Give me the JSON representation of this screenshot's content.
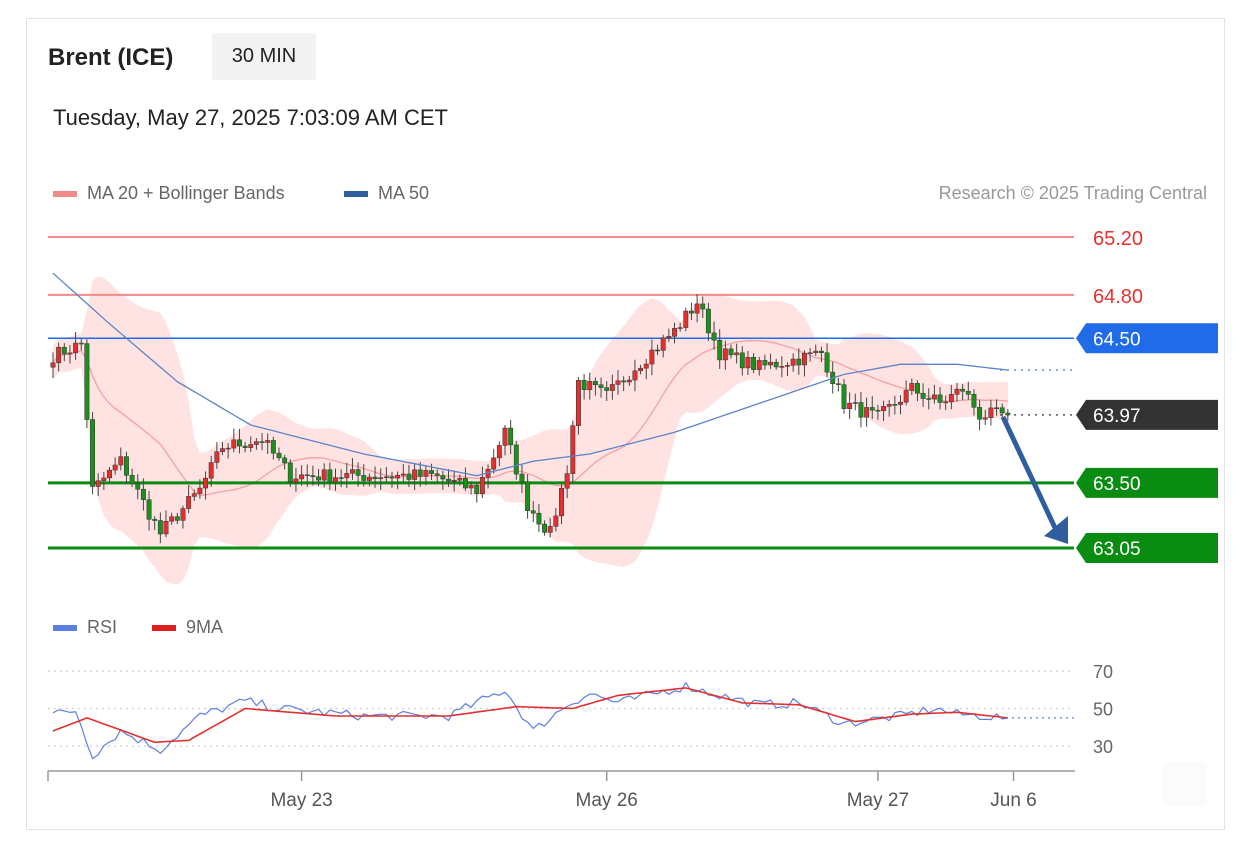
{
  "header": {
    "instrument": "Brent (ICE)",
    "timeframe": "30 MIN",
    "timestamp": "Tuesday, May 27, 2025 7:03:09 AM CET"
  },
  "legend": {
    "ma20": "MA 20 + Bollinger Bands",
    "ma50": "MA 50",
    "credit": "Research © 2025 Trading Central",
    "rsi": "RSI",
    "rsi_ma": "9MA"
  },
  "colors": {
    "resistance": "#f28a8a",
    "resistance_text": "#e8312e",
    "pivot": "#1f6be8",
    "support": "#0a8c12",
    "current": "#333333",
    "bullish": "#e03131",
    "bearish": "#1d8f1d",
    "bollinger_fill": "#ffd9d9",
    "ma20": "#f5a0a0",
    "ma50": "#5b84c8",
    "rsi": "#5b7fe0",
    "rsi_ma": "#e03131",
    "arrow": "#2f5d9e"
  },
  "chart_data": [
    {
      "type": "candlestick",
      "y_range": [
        62.55,
        65.45
      ],
      "levels": [
        {
          "label": "65.20",
          "value": 65.2,
          "kind": "resistance"
        },
        {
          "label": "64.80",
          "value": 64.8,
          "kind": "resistance"
        },
        {
          "label": "64.50",
          "value": 64.5,
          "kind": "pivot"
        },
        {
          "label": "63.97",
          "value": 63.97,
          "kind": "current"
        },
        {
          "label": "63.50",
          "value": 63.5,
          "kind": "support"
        },
        {
          "label": "63.05",
          "value": 63.05,
          "kind": "support"
        }
      ],
      "forecast": {
        "from": 63.97,
        "to": 63.05,
        "direction": "down"
      },
      "anchors": [
        {
          "i": 0,
          "v": 64.38
        },
        {
          "i": 5,
          "v": 64.46
        },
        {
          "i": 7,
          "v": 63.45
        },
        {
          "i": 12,
          "v": 63.65
        },
        {
          "i": 19,
          "v": 63.15
        },
        {
          "i": 26,
          "v": 63.45
        },
        {
          "i": 30,
          "v": 63.75
        },
        {
          "i": 37,
          "v": 63.8
        },
        {
          "i": 42,
          "v": 63.55
        },
        {
          "i": 55,
          "v": 63.55
        },
        {
          "i": 67,
          "v": 63.55
        },
        {
          "i": 75,
          "v": 63.45
        },
        {
          "i": 80,
          "v": 63.85
        },
        {
          "i": 84,
          "v": 63.35
        },
        {
          "i": 88,
          "v": 63.15
        },
        {
          "i": 91,
          "v": 63.6
        },
        {
          "i": 93,
          "v": 64.2
        },
        {
          "i": 98,
          "v": 64.1
        },
        {
          "i": 103,
          "v": 64.3
        },
        {
          "i": 110,
          "v": 64.55
        },
        {
          "i": 114,
          "v": 64.75
        },
        {
          "i": 118,
          "v": 64.4
        },
        {
          "i": 125,
          "v": 64.3
        },
        {
          "i": 131,
          "v": 64.35
        },
        {
          "i": 136,
          "v": 64.4
        },
        {
          "i": 140,
          "v": 64.05
        },
        {
          "i": 146,
          "v": 63.95
        },
        {
          "i": 152,
          "v": 64.15
        },
        {
          "i": 157,
          "v": 64.05
        },
        {
          "i": 161,
          "v": 64.15
        },
        {
          "i": 164,
          "v": 63.97
        },
        {
          "i": 169,
          "v": 63.97
        }
      ],
      "ma50_anchors": [
        {
          "i": 0,
          "v": 64.95
        },
        {
          "i": 10,
          "v": 64.6
        },
        {
          "i": 22,
          "v": 64.2
        },
        {
          "i": 35,
          "v": 63.9
        },
        {
          "i": 55,
          "v": 63.7
        },
        {
          "i": 75,
          "v": 63.55
        },
        {
          "i": 85,
          "v": 63.65
        },
        {
          "i": 95,
          "v": 63.7
        },
        {
          "i": 110,
          "v": 63.85
        },
        {
          "i": 125,
          "v": 64.05
        },
        {
          "i": 140,
          "v": 64.25
        },
        {
          "i": 150,
          "v": 64.32
        },
        {
          "i": 160,
          "v": 64.32
        },
        {
          "i": 169,
          "v": 64.28
        }
      ]
    },
    {
      "type": "line",
      "name": "RSI",
      "y_ticks": [
        70,
        50,
        30
      ],
      "reference": 45,
      "anchors": [
        {
          "i": 0,
          "v": 47
        },
        {
          "i": 4,
          "v": 49
        },
        {
          "i": 7,
          "v": 25
        },
        {
          "i": 12,
          "v": 38
        },
        {
          "i": 19,
          "v": 28
        },
        {
          "i": 26,
          "v": 46
        },
        {
          "i": 34,
          "v": 54
        },
        {
          "i": 40,
          "v": 50
        },
        {
          "i": 55,
          "v": 46
        },
        {
          "i": 70,
          "v": 46
        },
        {
          "i": 80,
          "v": 60
        },
        {
          "i": 85,
          "v": 38
        },
        {
          "i": 91,
          "v": 52
        },
        {
          "i": 95,
          "v": 58
        },
        {
          "i": 100,
          "v": 53
        },
        {
          "i": 112,
          "v": 62
        },
        {
          "i": 118,
          "v": 57
        },
        {
          "i": 125,
          "v": 52
        },
        {
          "i": 132,
          "v": 53
        },
        {
          "i": 140,
          "v": 42
        },
        {
          "i": 150,
          "v": 46
        },
        {
          "i": 156,
          "v": 50
        },
        {
          "i": 160,
          "v": 47
        },
        {
          "i": 169,
          "v": 45
        }
      ],
      "ma_anchors": [
        {
          "i": 0,
          "v": 38
        },
        {
          "i": 6,
          "v": 45
        },
        {
          "i": 18,
          "v": 32
        },
        {
          "i": 24,
          "v": 33
        },
        {
          "i": 34,
          "v": 50
        },
        {
          "i": 50,
          "v": 46
        },
        {
          "i": 70,
          "v": 46
        },
        {
          "i": 82,
          "v": 51
        },
        {
          "i": 92,
          "v": 50
        },
        {
          "i": 100,
          "v": 57
        },
        {
          "i": 112,
          "v": 61
        },
        {
          "i": 122,
          "v": 53
        },
        {
          "i": 132,
          "v": 52
        },
        {
          "i": 142,
          "v": 43
        },
        {
          "i": 152,
          "v": 47
        },
        {
          "i": 160,
          "v": 48
        },
        {
          "i": 169,
          "v": 45
        }
      ]
    }
  ],
  "x_axis": {
    "ticks": [
      {
        "label": "May 23",
        "i": 44
      },
      {
        "label": "May 26",
        "i": 98
      },
      {
        "label": "May 27",
        "i": 146
      },
      {
        "label": "Jun 6",
        "i": 170
      }
    ]
  }
}
